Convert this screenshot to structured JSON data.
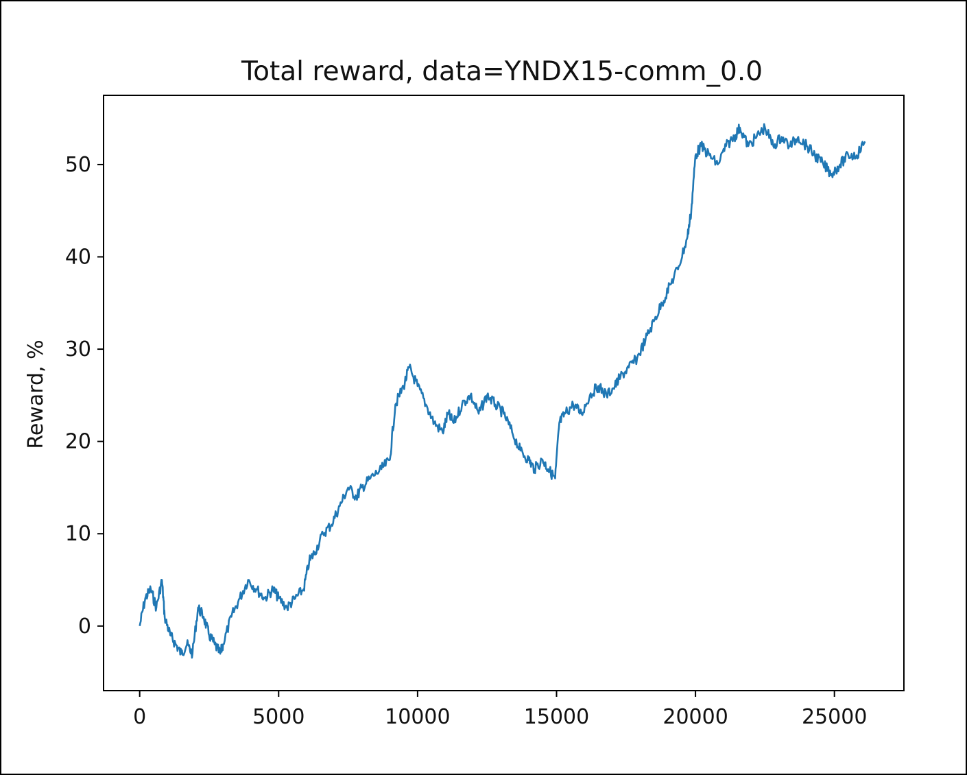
{
  "chart_data": {
    "type": "line",
    "title": "Total reward, data=YNDX15-comm_0.0",
    "xlabel": "",
    "ylabel": "Reward, %",
    "xlim": [
      -1300,
      27500
    ],
    "ylim": [
      -7,
      57.5
    ],
    "xticks": [
      0,
      5000,
      10000,
      15000,
      20000,
      25000
    ],
    "xtick_labels": [
      "0",
      "5000",
      "10000",
      "15000",
      "20000",
      "25000"
    ],
    "yticks": [
      0,
      10,
      20,
      30,
      40,
      50
    ],
    "ytick_labels": [
      "0",
      "10",
      "20",
      "30",
      "40",
      "50"
    ],
    "grid": false,
    "line_color": "#1f77b4",
    "series": [
      {
        "x": [
          0,
          200,
          400,
          600,
          800,
          900,
          1100,
          1300,
          1500,
          1700,
          1900,
          2100,
          2300,
          2500,
          2700,
          2900,
          3000,
          3300,
          3600,
          3900,
          4200,
          4500,
          4800,
          5000,
          5300,
          5600,
          5900,
          6100,
          6300,
          6600,
          6900,
          7200,
          7500,
          7800,
          8000,
          8300,
          8700,
          9000,
          9200,
          9500,
          9700,
          10000,
          10300,
          10600,
          10900,
          11100,
          11300,
          11600,
          11900,
          12200,
          12500,
          12800,
          13100,
          13400,
          13700,
          14000,
          14200,
          14500,
          14700,
          14950,
          15100,
          15300,
          15600,
          15900,
          16200,
          16500,
          16800,
          17100,
          17300,
          17600,
          17900,
          18200,
          18500,
          18800,
          19100,
          19400,
          19700,
          19850,
          20000,
          20200,
          20500,
          20800,
          21100,
          21400,
          21600,
          21900,
          22200,
          22500,
          22800,
          23100,
          23400,
          23700,
          24000,
          24300,
          24600,
          24900,
          25200,
          25500,
          25800,
          26100
        ],
        "y": [
          0,
          3,
          4,
          2,
          5,
          1,
          -1,
          -2,
          -3,
          -2,
          -3,
          2,
          1,
          -1,
          -2,
          -3,
          -2,
          1,
          3,
          5,
          4,
          3,
          4,
          3,
          2,
          3,
          4,
          7,
          8,
          10,
          11,
          13,
          15,
          14,
          15,
          16,
          17,
          18,
          24,
          26,
          28,
          26,
          24,
          22,
          21,
          23,
          22,
          24,
          25,
          23,
          25,
          24,
          23,
          21,
          19,
          18,
          17,
          18,
          17,
          16,
          22,
          23,
          24,
          23,
          25,
          26,
          25,
          26,
          27,
          28,
          29,
          31,
          33,
          35,
          37,
          39,
          42,
          45,
          51,
          52,
          51,
          50,
          52,
          53,
          54,
          52,
          53,
          54,
          52,
          53,
          52,
          53,
          52,
          51,
          50,
          49,
          50,
          51,
          51,
          52.5
        ]
      }
    ]
  }
}
